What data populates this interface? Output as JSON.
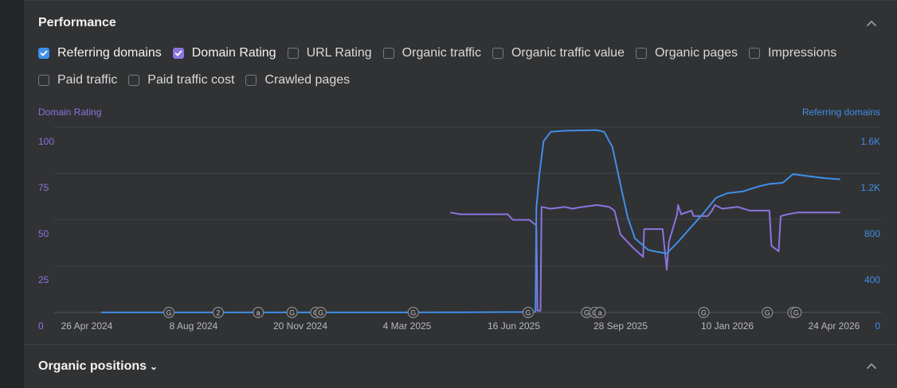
{
  "section": {
    "title": "Performance"
  },
  "checkboxes_row1": [
    {
      "label": "Referring domains",
      "checked": true,
      "color": "#3f8fe8"
    },
    {
      "label": "Domain Rating",
      "checked": true,
      "color": "#8b74e0"
    },
    {
      "label": "URL Rating",
      "checked": false
    },
    {
      "label": "Organic traffic",
      "checked": false
    },
    {
      "label": "Organic traffic value",
      "checked": false
    },
    {
      "label": "Organic pages",
      "checked": false
    },
    {
      "label": "Impressions",
      "checked": false
    }
  ],
  "checkboxes_row2": [
    {
      "label": "Paid traffic",
      "checked": false
    },
    {
      "label": "Paid traffic cost",
      "checked": false
    },
    {
      "label": "Crawled pages",
      "checked": false
    }
  ],
  "footer": {
    "title": "Organic positions"
  },
  "chart_data": {
    "type": "line",
    "left_axis_title": "Domain Rating",
    "right_axis_title": "Referring domains",
    "left_ticks": [
      "0",
      "25",
      "50",
      "75",
      "100"
    ],
    "right_ticks": [
      "0",
      "400",
      "800",
      "1.2K",
      "1.6K"
    ],
    "left_ylim": [
      0,
      100
    ],
    "right_ylim": [
      0,
      1600
    ],
    "x_tick_labels": [
      "26 Apr 2024",
      "8 Aug 2024",
      "20 Nov 2024",
      "4 Mar 2025",
      "16 Jun 2025",
      "28 Sep 2025",
      "10 Jan 2026",
      "24 Apr 2026"
    ],
    "x_range": [
      "2024-04-26",
      "2026-04-24"
    ],
    "grid": true,
    "colors": {
      "domain_rating": "#8b74e0",
      "referring_domains": "#3f8fe8"
    },
    "event_markers": [
      {
        "date": "2024-07-15",
        "label": "G"
      },
      {
        "date": "2024-09-01",
        "label": "2"
      },
      {
        "date": "2024-10-10",
        "label": "a"
      },
      {
        "date": "2024-11-12",
        "label": "G"
      },
      {
        "date": "2024-12-05",
        "label": "G"
      },
      {
        "date": "2024-12-10",
        "label": "G"
      },
      {
        "date": "2025-03-10",
        "label": "G"
      },
      {
        "date": "2025-06-30",
        "label": "G"
      },
      {
        "date": "2025-08-26",
        "label": "G"
      },
      {
        "date": "2025-09-03",
        "label": "G"
      },
      {
        "date": "2025-09-08",
        "label": "a"
      },
      {
        "date": "2025-12-18",
        "label": "G"
      },
      {
        "date": "2026-02-18",
        "label": "G"
      },
      {
        "date": "2026-03-15",
        "label": "G"
      },
      {
        "date": "2026-03-18",
        "label": "G"
      }
    ],
    "series": [
      {
        "name": "Domain Rating",
        "axis": "left",
        "points": [
          [
            "2025-04-15",
            54
          ],
          [
            "2025-04-25",
            53
          ],
          [
            "2025-06-10",
            53
          ],
          [
            "2025-06-15",
            50
          ],
          [
            "2025-07-01",
            50
          ],
          [
            "2025-07-08",
            47
          ],
          [
            "2025-07-09",
            1
          ],
          [
            "2025-07-12",
            1
          ],
          [
            "2025-07-13",
            57
          ],
          [
            "2025-07-22",
            56
          ],
          [
            "2025-08-05",
            57
          ],
          [
            "2025-08-12",
            56
          ],
          [
            "2025-08-22",
            57
          ],
          [
            "2025-09-05",
            58
          ],
          [
            "2025-09-17",
            57
          ],
          [
            "2025-09-22",
            55
          ],
          [
            "2025-09-28",
            42
          ],
          [
            "2025-10-10",
            35
          ],
          [
            "2025-10-20",
            30
          ],
          [
            "2025-10-21",
            45
          ],
          [
            "2025-11-08",
            45
          ],
          [
            "2025-11-12",
            23
          ],
          [
            "2025-11-14",
            38
          ],
          [
            "2025-11-22",
            53
          ],
          [
            "2025-11-23",
            58
          ],
          [
            "2025-11-26",
            53
          ],
          [
            "2025-12-06",
            55
          ],
          [
            "2025-12-08",
            52
          ],
          [
            "2025-12-22",
            52
          ],
          [
            "2025-12-26",
            55
          ],
          [
            "2025-12-29",
            58
          ],
          [
            "2026-01-05",
            56
          ],
          [
            "2026-01-20",
            57
          ],
          [
            "2026-02-01",
            55
          ],
          [
            "2026-02-20",
            55
          ],
          [
            "2026-02-22",
            36
          ],
          [
            "2026-03-01",
            33
          ],
          [
            "2026-03-03",
            52
          ],
          [
            "2026-03-10",
            53
          ],
          [
            "2026-03-20",
            54
          ],
          [
            "2026-04-30",
            54
          ]
        ]
      },
      {
        "name": "Referring domains",
        "axis": "right",
        "points": [
          [
            "2024-05-10",
            1
          ],
          [
            "2025-02-01",
            1
          ],
          [
            "2025-05-01",
            2
          ],
          [
            "2025-07-07",
            4
          ],
          [
            "2025-07-08",
            900
          ],
          [
            "2025-07-11",
            1200
          ],
          [
            "2025-07-15",
            1480
          ],
          [
            "2025-07-22",
            1560
          ],
          [
            "2025-08-05",
            1570
          ],
          [
            "2025-09-05",
            1575
          ],
          [
            "2025-09-12",
            1560
          ],
          [
            "2025-09-20",
            1430
          ],
          [
            "2025-09-28",
            1100
          ],
          [
            "2025-10-05",
            820
          ],
          [
            "2025-10-12",
            640
          ],
          [
            "2025-10-25",
            540
          ],
          [
            "2025-11-05",
            520
          ],
          [
            "2025-11-12",
            510
          ],
          [
            "2025-11-22",
            600
          ],
          [
            "2025-12-05",
            730
          ],
          [
            "2025-12-18",
            860
          ],
          [
            "2025-12-30",
            990
          ],
          [
            "2026-01-10",
            1030
          ],
          [
            "2026-01-25",
            1045
          ],
          [
            "2026-02-10",
            1090
          ],
          [
            "2026-02-20",
            1110
          ],
          [
            "2026-03-05",
            1120
          ],
          [
            "2026-03-15",
            1195
          ],
          [
            "2026-04-01",
            1175
          ],
          [
            "2026-04-15",
            1160
          ],
          [
            "2026-04-30",
            1150
          ]
        ]
      }
    ]
  }
}
